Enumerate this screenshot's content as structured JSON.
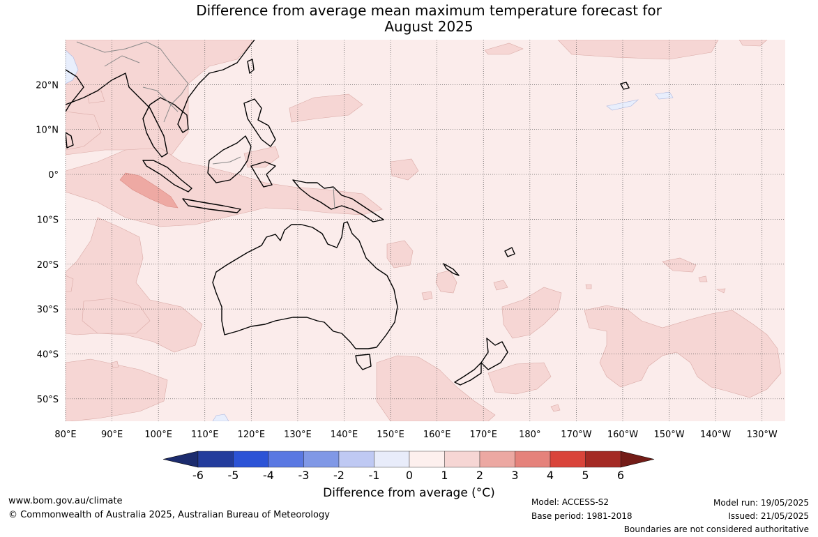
{
  "title": {
    "line1": "Difference from average mean maximum temperature forecast for",
    "line2": "August 2025"
  },
  "map": {
    "projection": "equirectangular",
    "lon_range": [
      80,
      235
    ],
    "lat_range": [
      -55,
      30
    ],
    "lon_ticks": [
      "80°E",
      "90°E",
      "100°E",
      "110°E",
      "120°E",
      "130°E",
      "140°E",
      "150°E",
      "160°E",
      "170°E",
      "180°",
      "170°W",
      "160°W",
      "150°W",
      "140°W",
      "130°W"
    ],
    "lat_ticks": [
      "20°N",
      "10°N",
      "0°",
      "10°S",
      "20°S",
      "30°S",
      "40°S",
      "50°S"
    ],
    "background_color": "#fbeceb",
    "anomaly_0_1_color": "#fbeceb",
    "anomaly_1_2_color": "#f6d6d4",
    "anomaly_2_3_color": "#eea9a3",
    "anomaly_neg_color": "#e8eefc"
  },
  "colorbar": {
    "title": "Difference from average (°C)",
    "tick_labels": [
      "-6",
      "-5",
      "-4",
      "-3",
      "-2",
      "-1",
      "0",
      "1",
      "2",
      "3",
      "4",
      "5",
      "6"
    ],
    "colors": [
      "#233c9c",
      "#2c53d6",
      "#5a78e2",
      "#8098e6",
      "#bfc9f3",
      "#e8ecfa",
      "#fdf0ee",
      "#f6d6d4",
      "#eca8a2",
      "#e5827b",
      "#d9443a",
      "#a42a24"
    ],
    "low_extend_color": "#1c2c6e",
    "high_extend_color": "#731c17"
  },
  "footer": {
    "website": "www.bom.gov.au/climate",
    "copyright": "© Commonwealth of Australia 2025, Australian Bureau of Meteorology",
    "model": "Model: ACCESS-S2",
    "base_period": "Base period: 1981-2018",
    "model_run": "Model run: 19/05/2025",
    "issued": "Issued: 21/05/2025",
    "disclaimer": "Boundaries are not considered authoritative"
  }
}
